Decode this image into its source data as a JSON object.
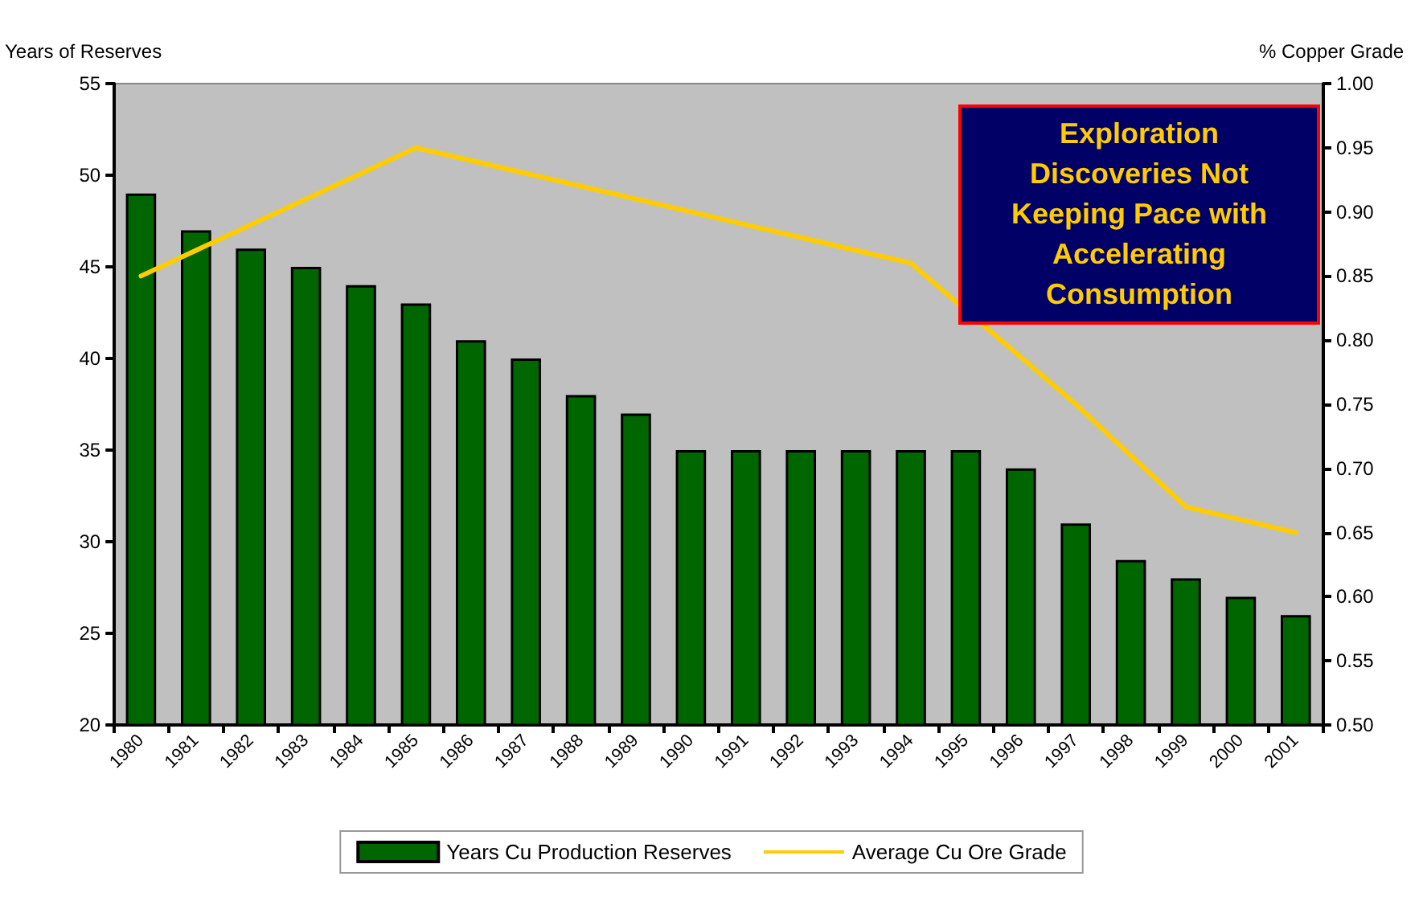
{
  "chart_data": {
    "type": "bar",
    "ylabel": "Years of Reserves",
    "y2label": "% Copper Grade",
    "categories": [
      "1980",
      "1981",
      "1982",
      "1983",
      "1984",
      "1985",
      "1986",
      "1987",
      "1988",
      "1989",
      "1990",
      "1991",
      "1992",
      "1993",
      "1994",
      "1995",
      "1996",
      "1997",
      "1998",
      "1999",
      "2000",
      "2001"
    ],
    "series": [
      {
        "name": "Years Cu Production Reserves",
        "type": "bar",
        "color": "#006600",
        "values": [
          49,
          47,
          46,
          45,
          44,
          43,
          41,
          40,
          38,
          37,
          35,
          35,
          35,
          35,
          35,
          35,
          34,
          31,
          29,
          28,
          27,
          26
        ]
      },
      {
        "name": "Average Cu Ore Grade",
        "type": "line",
        "axis": "y2",
        "color": "#ffcc00",
        "values": [
          0.85,
          0.87,
          0.89,
          0.91,
          0.93,
          0.95,
          0.94,
          0.93,
          0.92,
          0.91,
          0.9,
          0.89,
          0.88,
          0.87,
          0.86,
          null,
          null,
          0.75,
          0.71,
          0.67,
          0.66,
          0.65
        ]
      }
    ],
    "ylim": [
      20,
      55
    ],
    "yticks": [
      20,
      25,
      30,
      35,
      40,
      45,
      50,
      55
    ],
    "y2lim": [
      0.5,
      1.0
    ],
    "y2ticks": [
      {
        "value": 0.5,
        "label": "0.50"
      },
      {
        "value": 0.55,
        "label": "0.55"
      },
      {
        "value": 0.6,
        "label": "0.60"
      },
      {
        "value": 0.65,
        "label": "0.65"
      },
      {
        "value": 0.7,
        "label": "0.70"
      },
      {
        "value": 0.75,
        "label": "0.75"
      },
      {
        "value": 0.8,
        "label": "0.80"
      },
      {
        "value": 0.85,
        "label": "0.85"
      },
      {
        "value": 0.9,
        "label": "0.90"
      },
      {
        "value": 0.95,
        "label": "0.95"
      },
      {
        "value": 1.0,
        "label": "1.00"
      }
    ],
    "annotations": [
      "Exploration Discoveries Not Keeping Pace with Accelerating Consumption"
    ],
    "grid": false,
    "legend": "bottom",
    "marker": "none"
  }
}
